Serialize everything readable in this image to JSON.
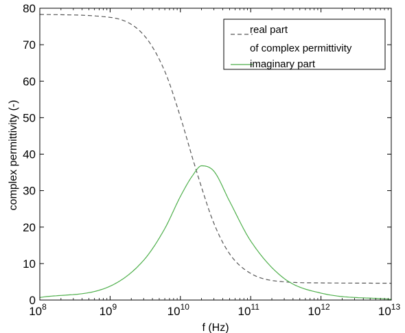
{
  "chart_data": {
    "type": "line",
    "xlabel": "f (Hz)",
    "ylabel": "complex permittivity (-)",
    "x_scale": "log",
    "xlim": [
      100000000,
      10000000000000
    ],
    "ylim": [
      0,
      80
    ],
    "x_ticks": [
      {
        "base": "10",
        "exp": "8",
        "value": 100000000
      },
      {
        "base": "10",
        "exp": "9",
        "value": 1000000000
      },
      {
        "base": "10",
        "exp": "10",
        "value": 10000000000
      },
      {
        "base": "10",
        "exp": "11",
        "value": 100000000000
      },
      {
        "base": "10",
        "exp": "12",
        "value": 1000000000000
      },
      {
        "base": "10",
        "exp": "13",
        "value": 10000000000000
      }
    ],
    "y_ticks": [
      "0",
      "10",
      "20",
      "30",
      "40",
      "50",
      "60",
      "70",
      "80"
    ],
    "grid": false,
    "legend_position": "top-right",
    "legend": [
      {
        "lines": [
          "real part",
          "of complex permittivity"
        ],
        "style": "dashed",
        "color": "#555555"
      },
      {
        "lines": [
          "imaginary part"
        ],
        "style": "solid",
        "color": "#4daf4a"
      }
    ],
    "series": [
      {
        "name": "real part of complex permittivity",
        "style": "dashed",
        "color": "#555555",
        "x": [
          100000000,
          1000000000,
          3000000000,
          6000000000,
          10000000000,
          15000000000,
          20000000000,
          30000000000,
          50000000000,
          100000000000,
          300000000000,
          1000000000000,
          10000000000000
        ],
        "y": [
          78.3,
          77.5,
          72.7,
          62.7,
          50.2,
          38.7,
          30.9,
          21.0,
          12.7,
          7.3,
          5.0,
          4.7,
          4.6
        ]
      },
      {
        "name": "imaginary part",
        "style": "solid",
        "color": "#4daf4a",
        "x": [
          100000000,
          1000000000,
          3000000000,
          6000000000,
          10000000000,
          15000000000,
          20000000000,
          30000000000,
          50000000000,
          100000000000,
          300000000000,
          1000000000000,
          10000000000000
        ],
        "y": [
          0.7,
          3.8,
          10.9,
          19.6,
          28.4,
          34.2,
          36.8,
          35.3,
          27.1,
          16.2,
          5.9,
          1.9,
          0.2
        ]
      }
    ]
  }
}
